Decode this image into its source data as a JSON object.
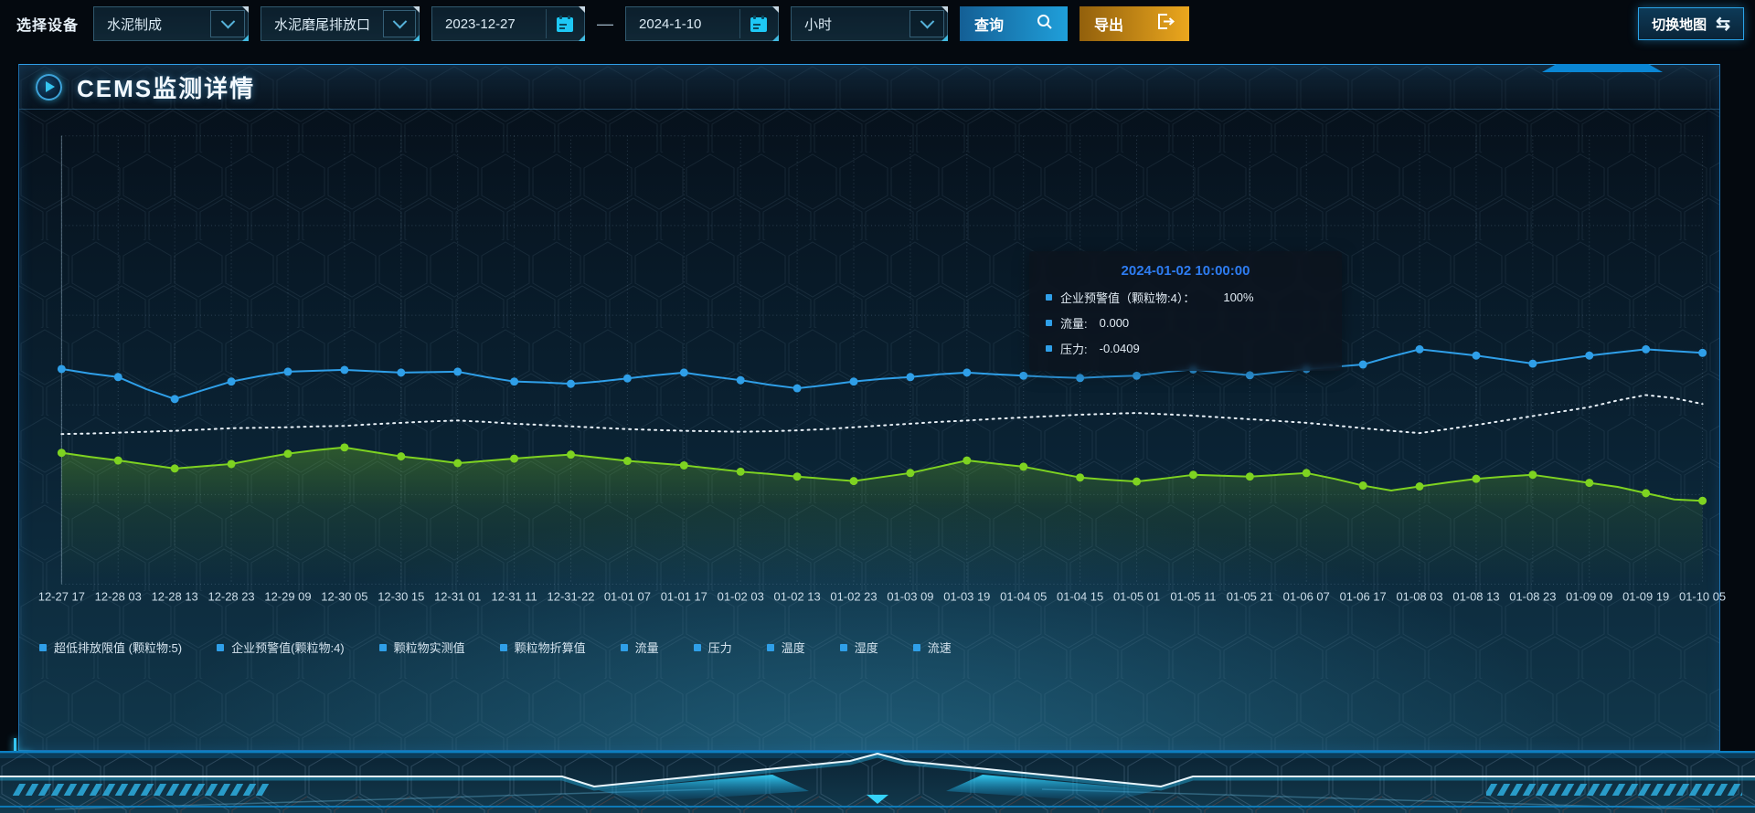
{
  "toolbar": {
    "device_label": "选择设备",
    "device_select_1": "水泥制成",
    "device_select_2": "水泥磨尾排放口",
    "date_start": "2023-12-27",
    "date_range_separator": "—",
    "date_end": "2024-1-10",
    "interval_select": "小时",
    "query_label": "查询",
    "export_label": "导出",
    "switch_map_label": "切换地图",
    "switch_map_icon": "⇆"
  },
  "panel": {
    "title": "CEMS监测详情"
  },
  "tooltip": {
    "title": "2024-01-02 10:00:00",
    "rows": [
      {
        "label": "企业预警值（颗粒物:4）：",
        "value": "100%"
      },
      {
        "label": "流量:",
        "value": "0.000"
      },
      {
        "label": "压力:",
        "value": "-0.0409"
      }
    ]
  },
  "legend": [
    "超低排放限值 (颗粒物:5)",
    "企业预警值(颗粒物:4)",
    "颗粒物实测值",
    "颗粒物折算值",
    "流量",
    "压力",
    "温度",
    "湿度",
    "流速"
  ],
  "chart_data": {
    "type": "line",
    "title": "",
    "xlabel": "",
    "ylabel": "",
    "ylim": [
      0,
      100
    ],
    "grid": "dotted",
    "legend_position": "bottom",
    "y_axis_labels_visible": false,
    "x_labels": [
      "12-27 17",
      "12-28 03",
      "12-28 13",
      "12-28 23",
      "12-29 09",
      "12-30 05",
      "12-30 15",
      "12-31 01",
      "12-31 11",
      "12-31-22",
      "01-01 07",
      "01-01 17",
      "01-02 03",
      "01-02 13",
      "01-02 23",
      "01-03 09",
      "01-03 19",
      "01-04 05",
      "01-04 15",
      "01-05 01",
      "01-05 11",
      "01-05 21",
      "01-06 07",
      "01-06 17",
      "01-08 03",
      "01-08 13",
      "01-08 23",
      "01-09 09",
      "01-09 19",
      "01-10 05"
    ],
    "series": [
      {
        "name": "企业预警值(颗粒物:4)",
        "color": "#2f9fe8",
        "style": "solid",
        "markers": true,
        "area": false,
        "values": [
          48.0,
          47.0,
          46.2,
          43.5,
          41.3,
          43.3,
          45.2,
          46.4,
          47.4,
          47.6,
          47.8,
          47.5,
          47.2,
          47.3,
          47.4,
          46.2,
          45.2,
          45.0,
          44.7,
          45.2,
          45.9,
          46.6,
          47.2,
          46.3,
          45.5,
          44.5,
          43.7,
          44.4,
          45.2,
          45.8,
          46.2,
          46.8,
          47.2,
          46.8,
          46.5,
          46.2,
          46.0,
          46.3,
          46.5,
          47.3,
          47.9,
          47.2,
          46.6,
          47.3,
          48.0,
          48.5,
          49.0,
          50.8,
          52.4,
          51.7,
          51.0,
          50.1,
          49.2,
          50.1,
          51.0,
          51.7,
          52.4,
          52.0,
          51.6
        ]
      },
      {
        "name": "颗粒物折算值",
        "color": "#e9f1f8",
        "style": "dotted",
        "markers": false,
        "area": false,
        "values": [
          33.5,
          33.6,
          33.8,
          34.0,
          34.2,
          34.5,
          34.8,
          34.9,
          35.0,
          35.2,
          35.3,
          35.7,
          36.0,
          36.3,
          36.5,
          36.2,
          35.8,
          35.5,
          35.2,
          34.9,
          34.6,
          34.4,
          34.2,
          34.1,
          34.0,
          34.1,
          34.3,
          34.6,
          35.0,
          35.4,
          35.8,
          36.2,
          36.5,
          36.9,
          37.2,
          37.5,
          37.8,
          38.0,
          38.2,
          37.9,
          37.6,
          37.2,
          36.8,
          36.4,
          36.0,
          35.4,
          34.8,
          34.2,
          33.7,
          34.6,
          35.5,
          36.5,
          37.5,
          38.5,
          39.5,
          41.0,
          42.2,
          41.5,
          40.2
        ]
      },
      {
        "name": "颗粒物实测值",
        "color": "#7ed321",
        "style": "solid",
        "markers": true,
        "area": true,
        "values": [
          29.3,
          28.4,
          27.6,
          26.7,
          25.8,
          26.3,
          26.8,
          28.0,
          29.1,
          29.9,
          30.5,
          29.5,
          28.5,
          27.8,
          27.0,
          27.5,
          28.0,
          28.5,
          28.9,
          28.2,
          27.5,
          27.0,
          26.5,
          25.8,
          25.1,
          24.6,
          24.0,
          23.5,
          23.0,
          23.9,
          24.8,
          26.2,
          27.6,
          26.9,
          26.2,
          25.0,
          23.8,
          23.3,
          22.9,
          23.6,
          24.4,
          24.2,
          24.0,
          24.4,
          24.8,
          23.5,
          22.0,
          20.9,
          21.8,
          22.7,
          23.5,
          24.0,
          24.4,
          23.5,
          22.6,
          21.7,
          20.3,
          18.9,
          18.6
        ]
      }
    ]
  },
  "colors": {
    "accent_blue": "#2f9fe8",
    "accent_cyan": "#35c5f0",
    "export_gold": "#eba71e",
    "tooltip_title_blue": "#2e7cf0",
    "grid": "rgba(150,185,212,0.25)"
  }
}
